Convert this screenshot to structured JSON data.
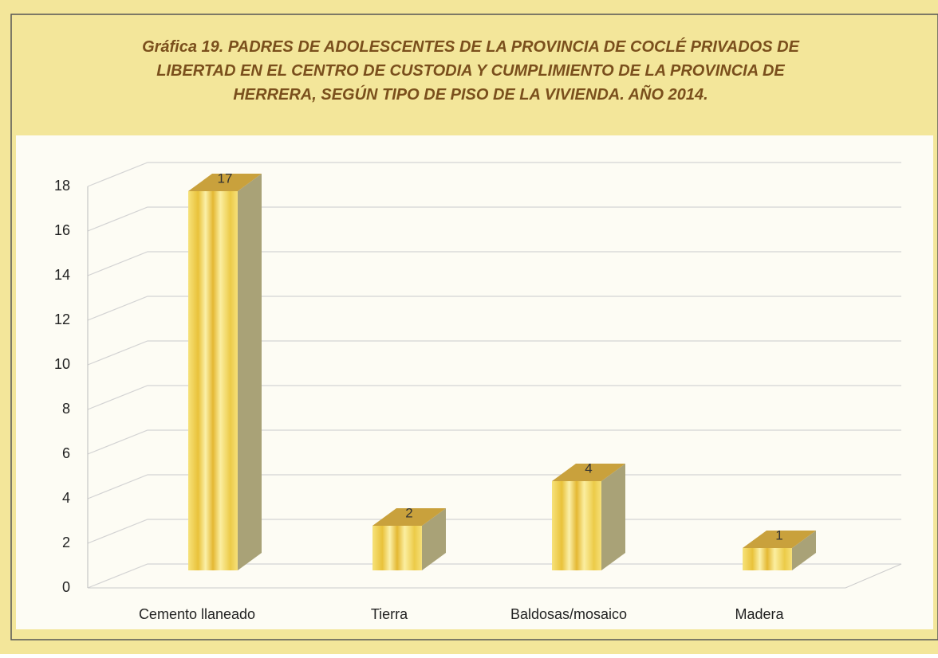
{
  "chart_data": {
    "type": "bar3d",
    "title": "Gráfica 19. PADRES DE ADOLESCENTES DE LA PROVINCIA DE COCLÉ PRIVADOS DE LIBERTAD EN EL CENTRO DE CUSTODIA Y CUMPLIMIENTO DE LA PROVINCIA DE HERRERA, SEGÚN TIPO DE PISO DE LA VIVIENDA.  AÑO 2014.",
    "categories": [
      "Cemento llaneado",
      "Tierra",
      "Baldosas/mosaico",
      "Madera"
    ],
    "values": [
      17,
      2,
      4,
      1
    ],
    "color": "#f2d34a",
    "ylim": [
      0,
      18
    ],
    "yticks": [
      0,
      2,
      4,
      6,
      8,
      10,
      12,
      14,
      16,
      18
    ],
    "grid": true
  }
}
